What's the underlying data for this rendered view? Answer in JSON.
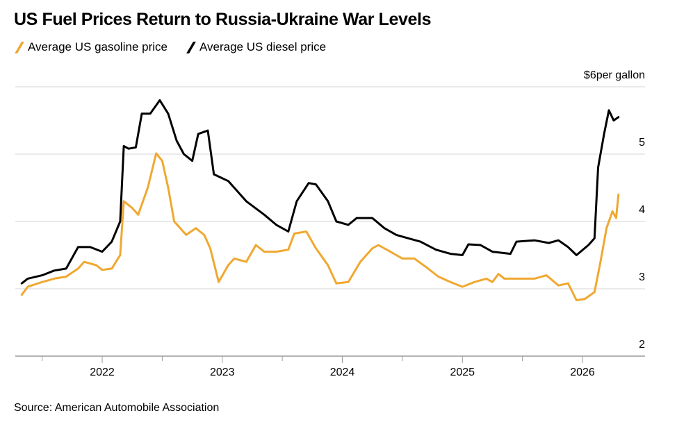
{
  "title": "US Fuel Prices Return to Russia-Ukraine War Levels",
  "source": "Source: American Automobile Association",
  "chart_data": {
    "type": "line",
    "title": "US Fuel Prices Return to Russia-Ukraine War Levels",
    "ylabel": "$6per gallon",
    "unit": "per gallon",
    "ylim": [
      2,
      6
    ],
    "xlim": [
      2021.33,
      2026.38
    ],
    "yticks": [
      {
        "value": 6,
        "label": "$6per gallon"
      },
      {
        "value": 5,
        "label": "5"
      },
      {
        "value": 4,
        "label": "4"
      },
      {
        "value": 3,
        "label": "3"
      },
      {
        "value": 2,
        "label": "2"
      }
    ],
    "xticks": [
      {
        "value": 2022,
        "label": "2022"
      },
      {
        "value": 2023,
        "label": "2023"
      },
      {
        "value": 2024,
        "label": "2024"
      },
      {
        "value": 2025,
        "label": "2025"
      },
      {
        "value": 2026,
        "label": "2026"
      }
    ],
    "grid": true,
    "legend_position": "top-left",
    "series": [
      {
        "name": "Average US gasoline price",
        "color": "#F0A830",
        "points": [
          [
            2021.33,
            2.91
          ],
          [
            2021.38,
            3.03
          ],
          [
            2021.5,
            3.1
          ],
          [
            2021.6,
            3.15
          ],
          [
            2021.7,
            3.18
          ],
          [
            2021.8,
            3.3
          ],
          [
            2021.85,
            3.4
          ],
          [
            2021.95,
            3.35
          ],
          [
            2022.0,
            3.28
          ],
          [
            2022.08,
            3.3
          ],
          [
            2022.15,
            3.5
          ],
          [
            2022.18,
            4.3
          ],
          [
            2022.25,
            4.2
          ],
          [
            2022.3,
            4.1
          ],
          [
            2022.38,
            4.5
          ],
          [
            2022.45,
            5.01
          ],
          [
            2022.5,
            4.9
          ],
          [
            2022.55,
            4.5
          ],
          [
            2022.6,
            4.0
          ],
          [
            2022.7,
            3.8
          ],
          [
            2022.78,
            3.9
          ],
          [
            2022.85,
            3.8
          ],
          [
            2022.9,
            3.6
          ],
          [
            2022.97,
            3.1
          ],
          [
            2023.05,
            3.35
          ],
          [
            2023.1,
            3.45
          ],
          [
            2023.2,
            3.4
          ],
          [
            2023.28,
            3.65
          ],
          [
            2023.35,
            3.55
          ],
          [
            2023.45,
            3.55
          ],
          [
            2023.55,
            3.58
          ],
          [
            2023.6,
            3.82
          ],
          [
            2023.7,
            3.85
          ],
          [
            2023.78,
            3.6
          ],
          [
            2023.88,
            3.35
          ],
          [
            2023.95,
            3.08
          ],
          [
            2024.05,
            3.1
          ],
          [
            2024.15,
            3.4
          ],
          [
            2024.25,
            3.6
          ],
          [
            2024.3,
            3.65
          ],
          [
            2024.4,
            3.55
          ],
          [
            2024.5,
            3.45
          ],
          [
            2024.6,
            3.45
          ],
          [
            2024.7,
            3.32
          ],
          [
            2024.8,
            3.18
          ],
          [
            2024.9,
            3.1
          ],
          [
            2025.0,
            3.03
          ],
          [
            2025.1,
            3.1
          ],
          [
            2025.2,
            3.15
          ],
          [
            2025.25,
            3.1
          ],
          [
            2025.3,
            3.22
          ],
          [
            2025.35,
            3.15
          ],
          [
            2025.5,
            3.15
          ],
          [
            2025.6,
            3.15
          ],
          [
            2025.7,
            3.2
          ],
          [
            2025.8,
            3.05
          ],
          [
            2025.88,
            3.08
          ],
          [
            2025.95,
            2.83
          ],
          [
            2026.02,
            2.85
          ],
          [
            2026.1,
            2.95
          ],
          [
            2026.15,
            3.4
          ],
          [
            2026.2,
            3.9
          ],
          [
            2026.25,
            4.15
          ],
          [
            2026.28,
            4.05
          ],
          [
            2026.3,
            4.4
          ]
        ]
      },
      {
        "name": "Average US diesel price",
        "color": "#000000",
        "points": [
          [
            2021.33,
            3.08
          ],
          [
            2021.38,
            3.15
          ],
          [
            2021.5,
            3.2
          ],
          [
            2021.6,
            3.27
          ],
          [
            2021.7,
            3.3
          ],
          [
            2021.8,
            3.62
          ],
          [
            2021.9,
            3.62
          ],
          [
            2022.0,
            3.55
          ],
          [
            2022.08,
            3.7
          ],
          [
            2022.15,
            4.0
          ],
          [
            2022.18,
            5.12
          ],
          [
            2022.22,
            5.08
          ],
          [
            2022.28,
            5.1
          ],
          [
            2022.33,
            5.6
          ],
          [
            2022.4,
            5.6
          ],
          [
            2022.48,
            5.8
          ],
          [
            2022.55,
            5.6
          ],
          [
            2022.62,
            5.2
          ],
          [
            2022.68,
            5.0
          ],
          [
            2022.75,
            4.9
          ],
          [
            2022.8,
            5.3
          ],
          [
            2022.88,
            5.35
          ],
          [
            2022.93,
            4.7
          ],
          [
            2023.05,
            4.6
          ],
          [
            2023.2,
            4.3
          ],
          [
            2023.35,
            4.1
          ],
          [
            2023.45,
            3.95
          ],
          [
            2023.55,
            3.85
          ],
          [
            2023.62,
            4.3
          ],
          [
            2023.72,
            4.57
          ],
          [
            2023.78,
            4.55
          ],
          [
            2023.88,
            4.3
          ],
          [
            2023.95,
            4.0
          ],
          [
            2024.05,
            3.95
          ],
          [
            2024.12,
            4.05
          ],
          [
            2024.25,
            4.05
          ],
          [
            2024.35,
            3.9
          ],
          [
            2024.45,
            3.8
          ],
          [
            2024.55,
            3.75
          ],
          [
            2024.65,
            3.7
          ],
          [
            2024.78,
            3.58
          ],
          [
            2024.9,
            3.52
          ],
          [
            2025.0,
            3.5
          ],
          [
            2025.05,
            3.66
          ],
          [
            2025.15,
            3.65
          ],
          [
            2025.25,
            3.55
          ],
          [
            2025.4,
            3.52
          ],
          [
            2025.45,
            3.7
          ],
          [
            2025.6,
            3.72
          ],
          [
            2025.72,
            3.68
          ],
          [
            2025.8,
            3.72
          ],
          [
            2025.88,
            3.62
          ],
          [
            2025.95,
            3.5
          ],
          [
            2026.05,
            3.65
          ],
          [
            2026.1,
            3.75
          ],
          [
            2026.13,
            4.8
          ],
          [
            2026.18,
            5.3
          ],
          [
            2026.22,
            5.65
          ],
          [
            2026.26,
            5.5
          ],
          [
            2026.3,
            5.55
          ]
        ]
      }
    ]
  }
}
